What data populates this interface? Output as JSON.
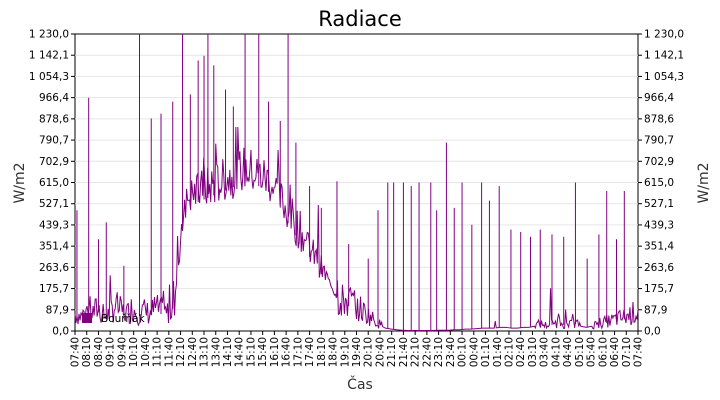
{
  "chart_data": {
    "type": "line",
    "title": "Radiace",
    "xlabel": "Čas",
    "ylabel": "W/m2",
    "ylabel_right": "W/m2",
    "ylim": [
      0,
      1230
    ],
    "yticks": [
      "0,0",
      "87,9",
      "175,7",
      "263,6",
      "351,4",
      "439,3",
      "527,1",
      "615,0",
      "702,9",
      "790,7",
      "878,6",
      "966,4",
      "1 054,3",
      "1 142,1",
      "1 230,0"
    ],
    "xticks": [
      "07:40",
      "08:10",
      "08:40",
      "09:10",
      "09:40",
      "10:10",
      "10:40",
      "11:10",
      "11:40",
      "12:10",
      "12:40",
      "13:10",
      "13:40",
      "14:10",
      "14:40",
      "15:10",
      "15:40",
      "16:10",
      "16:40",
      "17:10",
      "17:40",
      "18:10",
      "18:40",
      "19:10",
      "19:40",
      "20:10",
      "20:40",
      "21:10",
      "21:40",
      "22:10",
      "22:40",
      "23:10",
      "23:40",
      "00:10",
      "00:40",
      "01:10",
      "01:40",
      "02:10",
      "02:40",
      "03:10",
      "03:40",
      "04:10",
      "04:40",
      "05:10",
      "05:40",
      "06:10",
      "06:40",
      "07:10",
      "07:40"
    ],
    "grid": true,
    "legend_position": "bottom-left",
    "series": [
      {
        "name": "Bouřňák",
        "color": "#800080",
        "x_start": "07:40",
        "x_end": "07:40",
        "baseline": [
          60,
          50,
          70,
          60,
          80,
          50,
          60,
          90,
          70,
          60,
          80,
          60,
          70,
          60,
          80,
          70,
          60,
          90,
          250,
          500,
          520,
          530,
          540,
          550,
          560,
          570,
          580,
          590,
          600,
          620,
          620,
          610,
          600,
          590,
          570,
          540,
          500,
          450,
          410,
          380,
          340,
          300,
          270,
          230,
          190,
          160,
          130,
          110,
          100,
          90,
          70,
          55,
          40,
          25,
          12,
          8,
          5,
          3,
          2,
          2,
          2,
          2,
          2,
          3,
          3,
          3,
          5,
          5,
          8,
          8,
          10,
          12,
          12,
          12,
          15,
          15,
          12,
          12,
          15,
          15,
          20,
          25,
          20,
          25,
          30,
          25,
          20,
          30,
          20,
          15,
          20,
          25,
          30,
          35,
          40,
          45,
          50,
          60,
          70
        ],
        "spikes": [
          {
            "x": "07:45",
            "value": 500
          },
          {
            "x": "08:15",
            "value": 966
          },
          {
            "x": "08:40",
            "value": 380
          },
          {
            "x": "09:00",
            "value": 450
          },
          {
            "x": "09:45",
            "value": 270
          },
          {
            "x": "10:25",
            "value": 1230
          },
          {
            "x": "10:55",
            "value": 880
          },
          {
            "x": "11:20",
            "value": 900
          },
          {
            "x": "11:50",
            "value": 950
          },
          {
            "x": "12:15",
            "value": 1230
          },
          {
            "x": "12:35",
            "value": 980
          },
          {
            "x": "12:55",
            "value": 1120
          },
          {
            "x": "13:10",
            "value": 1140
          },
          {
            "x": "13:20",
            "value": 1230
          },
          {
            "x": "13:35",
            "value": 1100
          },
          {
            "x": "14:05",
            "value": 1000
          },
          {
            "x": "14:25",
            "value": 930
          },
          {
            "x": "14:55",
            "value": 1230
          },
          {
            "x": "15:30",
            "value": 1230
          },
          {
            "x": "15:55",
            "value": 950
          },
          {
            "x": "16:25",
            "value": 870
          },
          {
            "x": "16:45",
            "value": 1230
          },
          {
            "x": "17:05",
            "value": 780
          },
          {
            "x": "17:40",
            "value": 600
          },
          {
            "x": "18:10",
            "value": 510
          },
          {
            "x": "18:50",
            "value": 620
          },
          {
            "x": "19:20",
            "value": 360
          },
          {
            "x": "20:10",
            "value": 300
          },
          {
            "x": "20:35",
            "value": 500
          },
          {
            "x": "21:00",
            "value": 615
          },
          {
            "x": "21:15",
            "value": 615
          },
          {
            "x": "21:40",
            "value": 615
          },
          {
            "x": "22:00",
            "value": 600
          },
          {
            "x": "22:20",
            "value": 615
          },
          {
            "x": "22:50",
            "value": 615
          },
          {
            "x": "23:05",
            "value": 500
          },
          {
            "x": "23:30",
            "value": 780
          },
          {
            "x": "23:50",
            "value": 510
          },
          {
            "x": "00:10",
            "value": 615
          },
          {
            "x": "00:35",
            "value": 440
          },
          {
            "x": "01:00",
            "value": 615
          },
          {
            "x": "01:20",
            "value": 540
          },
          {
            "x": "01:45",
            "value": 600
          },
          {
            "x": "02:15",
            "value": 420
          },
          {
            "x": "02:40",
            "value": 410
          },
          {
            "x": "03:05",
            "value": 390
          },
          {
            "x": "03:30",
            "value": 420
          },
          {
            "x": "04:00",
            "value": 400
          },
          {
            "x": "04:30",
            "value": 390
          },
          {
            "x": "05:00",
            "value": 615
          },
          {
            "x": "05:30",
            "value": 300
          },
          {
            "x": "06:00",
            "value": 400
          },
          {
            "x": "06:20",
            "value": 580
          },
          {
            "x": "06:45",
            "value": 380
          },
          {
            "x": "07:05",
            "value": 580
          }
        ]
      }
    ]
  }
}
